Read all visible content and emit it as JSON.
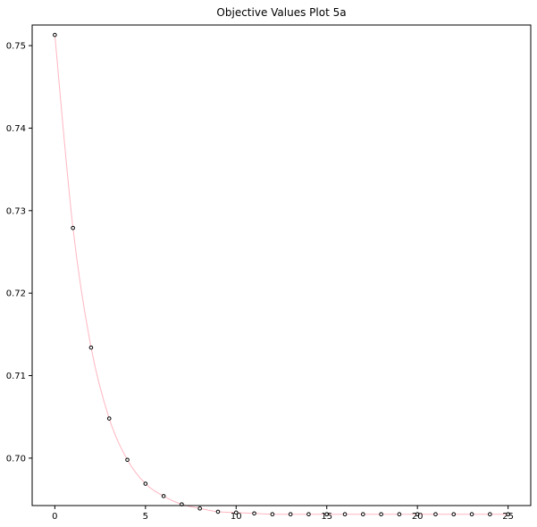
{
  "chart_data": {
    "type": "line",
    "title": "Objective Values Plot 5a",
    "xlabel": "",
    "ylabel": "",
    "xlim": [
      -1.25,
      26.25
    ],
    "ylim": [
      0.69425,
      0.7525
    ],
    "xticks": [
      0,
      5,
      10,
      15,
      20,
      25
    ],
    "yticks": [
      0.7,
      0.71,
      0.72,
      0.73,
      0.74,
      0.75
    ],
    "xtick_labels": [
      "0",
      "5",
      "10",
      "15",
      "20",
      "25"
    ],
    "ytick_labels": [
      "0.70",
      "0.71",
      "0.72",
      "0.73",
      "0.74",
      "0.75"
    ],
    "grid": false,
    "series": [
      {
        "line_color": "#ffb6c1",
        "marker_edge_color": "#000000",
        "marker_face_color": "#ffffff",
        "marker": "circle",
        "x": [
          0,
          1,
          2,
          3,
          4,
          5,
          6,
          7,
          8,
          9,
          10,
          11,
          12,
          13,
          14,
          15,
          16,
          17,
          18,
          19,
          20,
          21,
          22,
          23,
          24,
          25
        ],
        "y": [
          0.7513,
          0.7279,
          0.7134,
          0.7048,
          0.6998,
          0.6969,
          0.6954,
          0.6944,
          0.6939,
          0.6935,
          0.6934,
          0.6933,
          0.6932,
          0.6932,
          0.6932,
          0.6932,
          0.6932,
          0.6932,
          0.6932,
          0.6932,
          0.6932,
          0.6932,
          0.6932,
          0.6932,
          0.6932,
          0.6932
        ]
      }
    ]
  }
}
